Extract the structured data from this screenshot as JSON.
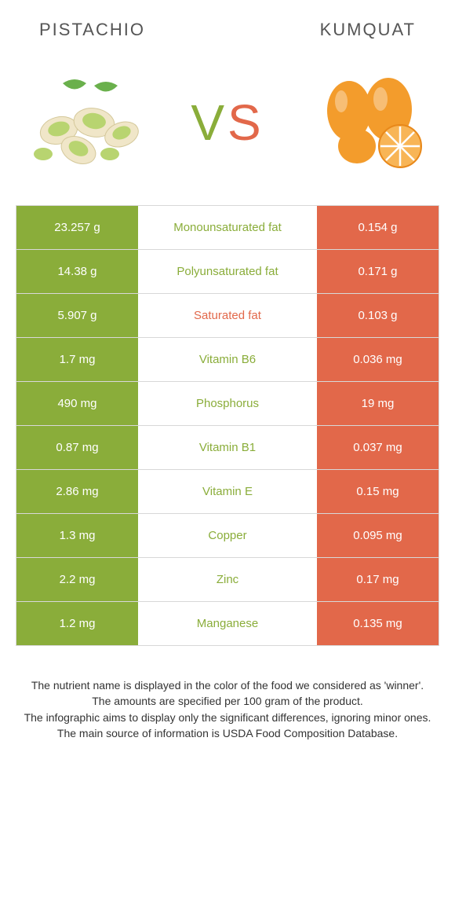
{
  "header": {
    "left_title": "Pistachio",
    "right_title": "Kumquat"
  },
  "vs": {
    "v": "V",
    "s": "S"
  },
  "colors": {
    "pistachio": "#8aad3a",
    "kumquat": "#e2684a",
    "border": "#d8d8d8",
    "title_text": "#555555",
    "footer_text": "#333333",
    "background": "#ffffff"
  },
  "table": {
    "rows": [
      {
        "left": "23.257 g",
        "label": "Monounsaturated fat",
        "right": "0.154 g",
        "winner": "left"
      },
      {
        "left": "14.38 g",
        "label": "Polyunsaturated fat",
        "right": "0.171 g",
        "winner": "left"
      },
      {
        "left": "5.907 g",
        "label": "Saturated fat",
        "right": "0.103 g",
        "winner": "right"
      },
      {
        "left": "1.7 mg",
        "label": "Vitamin B6",
        "right": "0.036 mg",
        "winner": "left"
      },
      {
        "left": "490 mg",
        "label": "Phosphorus",
        "right": "19 mg",
        "winner": "left"
      },
      {
        "left": "0.87 mg",
        "label": "Vitamin B1",
        "right": "0.037 mg",
        "winner": "left"
      },
      {
        "left": "2.86 mg",
        "label": "Vitamin E",
        "right": "0.15 mg",
        "winner": "left"
      },
      {
        "left": "1.3 mg",
        "label": "Copper",
        "right": "0.095 mg",
        "winner": "left"
      },
      {
        "left": "2.2 mg",
        "label": "Zinc",
        "right": "0.17 mg",
        "winner": "left"
      },
      {
        "left": "1.2 mg",
        "label": "Manganese",
        "right": "0.135 mg",
        "winner": "left"
      }
    ]
  },
  "footer": {
    "line1": "The nutrient name is displayed in the color of the food we considered as 'winner'.",
    "line2": "The amounts are specified per 100 gram of the product.",
    "line3": "The infographic aims to display only the significant differences, ignoring minor ones.",
    "line4": "The main source of information is USDA Food Composition Database."
  }
}
